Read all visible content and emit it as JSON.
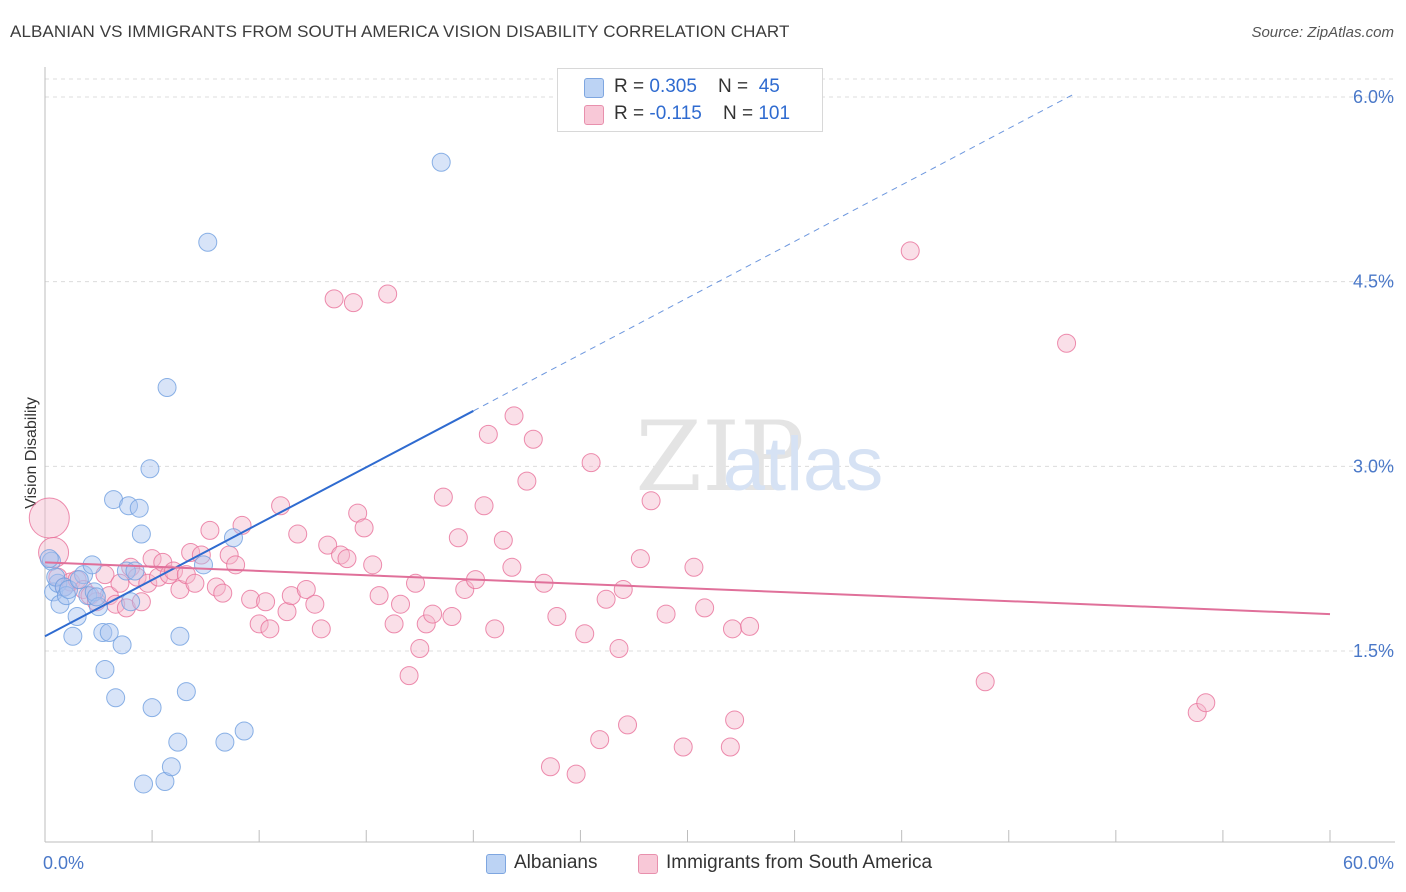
{
  "title": "ALBANIAN VS IMMIGRANTS FROM SOUTH AMERICA VISION DISABILITY CORRELATION CHART",
  "source": "Source: ZipAtlas.com",
  "watermark": {
    "zip": "ZIP",
    "atlas": "atlas"
  },
  "legend": {
    "rows": [
      {
        "r_label": "R = ",
        "r_value": "0.305",
        "n_label": "N = ",
        "n_value": "45",
        "color": "#a8c4f0"
      },
      {
        "r_label": "R = ",
        "r_value": "-0.115",
        "n_label": "N = ",
        "n_value": "101",
        "color": "#f4b8cb"
      }
    ]
  },
  "bottom_legend": {
    "albanians": "Albanians",
    "immigrants": "Immigrants from South America"
  },
  "chart_data": {
    "type": "scatter",
    "title": "ALBANIAN VS IMMIGRANTS FROM SOUTH AMERICA VISION DISABILITY CORRELATION CHART",
    "xlabel": "",
    "ylabel": "Vision Disability",
    "xlim": [
      0,
      60
    ],
    "ylim": [
      0,
      6.3
    ],
    "x_tick_labels": [
      "0.0%",
      "60.0%"
    ],
    "y_ticks": [
      1.5,
      3.0,
      4.5,
      6.0
    ],
    "y_tick_labels": [
      "1.5%",
      "3.0%",
      "4.5%",
      "6.0%"
    ],
    "colors": {
      "albanians": "#6f9fe0",
      "albanians_fill": "#a8c4f0",
      "immigrants": "#e8709a",
      "immigrants_fill": "#f4b8cb",
      "trend_blue": "#2f6bd0",
      "trend_pink": "#e0709a"
    },
    "series": [
      {
        "name": "Albanians",
        "r": 0.305,
        "n": 45,
        "trend": {
          "x0": 0,
          "y0": 1.62,
          "x1": 20,
          "y1": 3.45,
          "dash_to_x": 48,
          "dash_to_y": 6.02
        },
        "points": [
          [
            0.3,
            2.23
          ],
          [
            0.4,
            1.98
          ],
          [
            0.6,
            2.05
          ],
          [
            0.5,
            2.1
          ],
          [
            0.7,
            1.88
          ],
          [
            0.9,
            2.02
          ],
          [
            1.0,
            1.95
          ],
          [
            1.3,
            1.62
          ],
          [
            1.5,
            1.78
          ],
          [
            1.8,
            2.12
          ],
          [
            2.0,
            1.95
          ],
          [
            2.2,
            2.2
          ],
          [
            2.3,
            1.98
          ],
          [
            2.5,
            1.86
          ],
          [
            2.7,
            1.65
          ],
          [
            2.8,
            1.35
          ],
          [
            3.0,
            1.65
          ],
          [
            3.2,
            2.73
          ],
          [
            3.3,
            1.12
          ],
          [
            3.6,
            1.55
          ],
          [
            3.8,
            2.15
          ],
          [
            3.9,
            2.68
          ],
          [
            4.0,
            1.9
          ],
          [
            4.2,
            2.15
          ],
          [
            4.4,
            2.66
          ],
          [
            4.5,
            2.45
          ],
          [
            4.6,
            0.42
          ],
          [
            4.9,
            2.98
          ],
          [
            5.0,
            1.04
          ],
          [
            5.6,
            0.44
          ],
          [
            5.7,
            3.64
          ],
          [
            5.9,
            0.56
          ],
          [
            6.2,
            0.76
          ],
          [
            6.3,
            1.62
          ],
          [
            6.6,
            1.17
          ],
          [
            7.4,
            2.2
          ],
          [
            7.6,
            4.82
          ],
          [
            8.4,
            0.76
          ],
          [
            8.8,
            2.42
          ],
          [
            9.3,
            0.85
          ],
          [
            18.5,
            5.47
          ],
          [
            0.2,
            2.25
          ],
          [
            1.1,
            2.0
          ],
          [
            1.6,
            2.08
          ],
          [
            2.4,
            1.94
          ]
        ]
      },
      {
        "name": "Immigrants from South America",
        "r": -0.115,
        "n": 101,
        "trend": {
          "x0": 0,
          "y0": 2.22,
          "x1": 60,
          "y1": 1.8
        },
        "points": [
          [
            0.2,
            2.58
          ],
          [
            0.4,
            2.3
          ],
          [
            0.6,
            2.1
          ],
          [
            0.9,
            2.02
          ],
          [
            1.2,
            2.06
          ],
          [
            1.5,
            2.08
          ],
          [
            1.8,
            2.0
          ],
          [
            2.1,
            1.95
          ],
          [
            2.4,
            1.9
          ],
          [
            2.8,
            2.12
          ],
          [
            3.0,
            1.95
          ],
          [
            3.3,
            1.88
          ],
          [
            3.5,
            2.05
          ],
          [
            3.8,
            1.85
          ],
          [
            4.0,
            2.18
          ],
          [
            4.3,
            2.1
          ],
          [
            4.5,
            1.9
          ],
          [
            4.8,
            2.05
          ],
          [
            5.0,
            2.25
          ],
          [
            5.3,
            2.1
          ],
          [
            5.5,
            2.22
          ],
          [
            5.8,
            2.12
          ],
          [
            6.0,
            2.15
          ],
          [
            6.3,
            2.0
          ],
          [
            6.6,
            2.12
          ],
          [
            6.8,
            2.3
          ],
          [
            7.0,
            2.05
          ],
          [
            7.3,
            2.28
          ],
          [
            7.7,
            2.48
          ],
          [
            8.0,
            2.02
          ],
          [
            8.3,
            1.97
          ],
          [
            8.6,
            2.28
          ],
          [
            8.9,
            2.2
          ],
          [
            9.2,
            2.52
          ],
          [
            9.6,
            1.92
          ],
          [
            10.0,
            1.72
          ],
          [
            10.3,
            1.9
          ],
          [
            10.5,
            1.68
          ],
          [
            11.0,
            2.68
          ],
          [
            11.3,
            1.82
          ],
          [
            11.5,
            1.95
          ],
          [
            11.8,
            2.45
          ],
          [
            12.2,
            2.0
          ],
          [
            12.6,
            1.88
          ],
          [
            12.9,
            1.68
          ],
          [
            13.2,
            2.36
          ],
          [
            13.5,
            4.36
          ],
          [
            13.8,
            2.28
          ],
          [
            14.1,
            2.25
          ],
          [
            14.4,
            4.33
          ],
          [
            14.6,
            2.62
          ],
          [
            14.9,
            2.5
          ],
          [
            15.3,
            2.2
          ],
          [
            15.6,
            1.95
          ],
          [
            16.0,
            4.4
          ],
          [
            16.3,
            1.72
          ],
          [
            16.6,
            1.88
          ],
          [
            17.0,
            1.3
          ],
          [
            17.3,
            2.05
          ],
          [
            17.5,
            1.52
          ],
          [
            17.8,
            1.72
          ],
          [
            18.1,
            1.8
          ],
          [
            18.6,
            2.75
          ],
          [
            19.0,
            1.78
          ],
          [
            19.3,
            2.42
          ],
          [
            19.6,
            2.0
          ],
          [
            20.1,
            2.08
          ],
          [
            20.5,
            2.68
          ],
          [
            20.7,
            3.26
          ],
          [
            21.0,
            1.68
          ],
          [
            21.4,
            2.4
          ],
          [
            21.8,
            2.18
          ],
          [
            21.9,
            3.41
          ],
          [
            22.5,
            2.88
          ],
          [
            22.8,
            3.22
          ],
          [
            23.3,
            2.05
          ],
          [
            23.6,
            0.56
          ],
          [
            23.9,
            1.78
          ],
          [
            24.8,
            0.5
          ],
          [
            25.2,
            1.64
          ],
          [
            25.5,
            3.03
          ],
          [
            25.9,
            0.78
          ],
          [
            26.2,
            1.92
          ],
          [
            26.8,
            1.52
          ],
          [
            27.0,
            2.0
          ],
          [
            27.2,
            0.9
          ],
          [
            27.8,
            2.25
          ],
          [
            28.3,
            2.72
          ],
          [
            29.0,
            1.8
          ],
          [
            29.8,
            0.72
          ],
          [
            30.3,
            2.18
          ],
          [
            30.8,
            1.85
          ],
          [
            32.0,
            0.72
          ],
          [
            32.2,
            0.94
          ],
          [
            32.1,
            1.68
          ],
          [
            32.9,
            1.7
          ],
          [
            40.4,
            4.75
          ],
          [
            43.9,
            1.25
          ],
          [
            47.7,
            4.0
          ],
          [
            53.8,
            1.0
          ],
          [
            54.2,
            1.08
          ]
        ]
      }
    ]
  }
}
